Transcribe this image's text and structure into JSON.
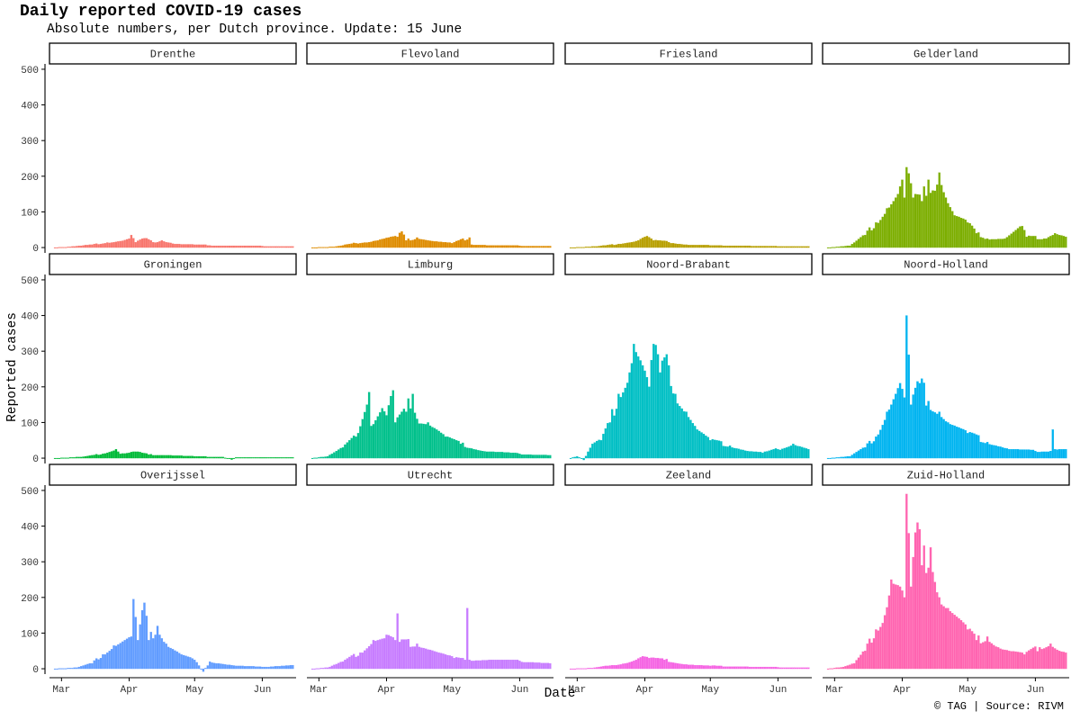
{
  "title": "Daily reported COVID-19 cases",
  "subtitle": "Absolute numbers, per Dutch province. Update: 15 June",
  "caption": "© TAG | Source: RIVM",
  "chart_data": {
    "type": "bar",
    "layout": "facet-grid",
    "facet_rows": 3,
    "facet_cols": 4,
    "xlabel": "Date",
    "ylabel": "Reported cases",
    "x_start": "2020-02-27",
    "x_end": "2020-06-15",
    "xticks": [
      {
        "label": "Mar",
        "date": "2020-03-01"
      },
      {
        "label": "Apr",
        "date": "2020-04-01"
      },
      {
        "label": "May",
        "date": "2020-05-01"
      },
      {
        "label": "Jun",
        "date": "2020-06-01"
      }
    ],
    "ylim": [
      -15,
      515
    ],
    "yticks": [
      0,
      100,
      200,
      300,
      400,
      500
    ],
    "grid": false,
    "legend": "none",
    "keyframes_note": "Daily values estimated from bar heights; sparse anchor dates, intermediate days interpolated.",
    "series": [
      {
        "name": "Drenthe",
        "color": "#F8766D",
        "keyframes": [
          [
            "2020-02-27",
            0
          ],
          [
            "2020-03-05",
            2
          ],
          [
            "2020-03-15",
            8
          ],
          [
            "2020-03-22",
            14
          ],
          [
            "2020-03-28",
            18
          ],
          [
            "2020-04-01",
            25
          ],
          [
            "2020-04-02",
            35
          ],
          [
            "2020-04-04",
            15
          ],
          [
            "2020-04-08",
            26
          ],
          [
            "2020-04-12",
            15
          ],
          [
            "2020-04-16",
            20
          ],
          [
            "2020-04-22",
            10
          ],
          [
            "2020-05-01",
            8
          ],
          [
            "2020-05-15",
            5
          ],
          [
            "2020-06-01",
            4
          ],
          [
            "2020-06-15",
            3
          ]
        ]
      },
      {
        "name": "Flevoland",
        "color": "#DE8C00",
        "keyframes": [
          [
            "2020-02-27",
            0
          ],
          [
            "2020-03-08",
            2
          ],
          [
            "2020-03-18",
            12
          ],
          [
            "2020-03-26",
            18
          ],
          [
            "2020-04-02",
            28
          ],
          [
            "2020-04-06",
            30
          ],
          [
            "2020-04-08",
            45
          ],
          [
            "2020-04-10",
            20
          ],
          [
            "2020-04-15",
            28
          ],
          [
            "2020-04-22",
            18
          ],
          [
            "2020-05-01",
            12
          ],
          [
            "2020-05-09",
            28
          ],
          [
            "2020-05-10",
            8
          ],
          [
            "2020-05-20",
            6
          ],
          [
            "2020-06-01",
            5
          ],
          [
            "2020-06-15",
            4
          ]
        ]
      },
      {
        "name": "Friesland",
        "color": "#B79F00",
        "keyframes": [
          [
            "2020-02-27",
            0
          ],
          [
            "2020-03-10",
            3
          ],
          [
            "2020-03-20",
            10
          ],
          [
            "2020-03-28",
            18
          ],
          [
            "2020-04-02",
            32
          ],
          [
            "2020-04-05",
            20
          ],
          [
            "2020-04-12",
            15
          ],
          [
            "2020-04-20",
            8
          ],
          [
            "2020-05-01",
            6
          ],
          [
            "2020-05-15",
            5
          ],
          [
            "2020-06-01",
            3
          ],
          [
            "2020-06-15",
            3
          ]
        ]
      },
      {
        "name": "Gelderland",
        "color": "#7CAE00",
        "keyframes": [
          [
            "2020-02-27",
            0
          ],
          [
            "2020-03-08",
            5
          ],
          [
            "2020-03-15",
            35
          ],
          [
            "2020-03-20",
            70
          ],
          [
            "2020-03-25",
            110
          ],
          [
            "2020-03-30",
            150
          ],
          [
            "2020-04-01",
            190
          ],
          [
            "2020-04-02",
            140
          ],
          [
            "2020-04-03",
            225
          ],
          [
            "2020-04-06",
            140
          ],
          [
            "2020-04-10",
            130
          ],
          [
            "2020-04-13",
            190
          ],
          [
            "2020-04-15",
            160
          ],
          [
            "2020-04-18",
            210
          ],
          [
            "2020-04-21",
            140
          ],
          [
            "2020-04-25",
            90
          ],
          [
            "2020-05-01",
            70
          ],
          [
            "2020-05-05",
            40
          ],
          [
            "2020-05-10",
            25
          ],
          [
            "2020-05-18",
            25
          ],
          [
            "2020-05-26",
            60
          ],
          [
            "2020-05-28",
            30
          ],
          [
            "2020-06-05",
            25
          ],
          [
            "2020-06-10",
            40
          ],
          [
            "2020-06-15",
            30
          ]
        ]
      },
      {
        "name": "Groningen",
        "color": "#00BA38",
        "keyframes": [
          [
            "2020-02-27",
            0
          ],
          [
            "2020-03-10",
            3
          ],
          [
            "2020-03-20",
            12
          ],
          [
            "2020-03-26",
            25
          ],
          [
            "2020-03-28",
            12
          ],
          [
            "2020-04-01",
            15
          ],
          [
            "2020-04-04",
            18
          ],
          [
            "2020-04-10",
            10
          ],
          [
            "2020-04-20",
            8
          ],
          [
            "2020-05-01",
            5
          ],
          [
            "2020-05-14",
            3
          ],
          [
            "2020-05-18",
            -4
          ],
          [
            "2020-05-20",
            2
          ],
          [
            "2020-06-01",
            2
          ],
          [
            "2020-06-15",
            2
          ]
        ]
      },
      {
        "name": "Limburg",
        "color": "#00C08B",
        "keyframes": [
          [
            "2020-02-27",
            0
          ],
          [
            "2020-03-05",
            5
          ],
          [
            "2020-03-12",
            30
          ],
          [
            "2020-03-18",
            60
          ],
          [
            "2020-03-24",
            185
          ],
          [
            "2020-03-25",
            90
          ],
          [
            "2020-03-30",
            140
          ],
          [
            "2020-04-01",
            120
          ],
          [
            "2020-04-04",
            190
          ],
          [
            "2020-04-05",
            100
          ],
          [
            "2020-04-10",
            130
          ],
          [
            "2020-04-13",
            180
          ],
          [
            "2020-04-15",
            110
          ],
          [
            "2020-04-20",
            100
          ],
          [
            "2020-04-28",
            60
          ],
          [
            "2020-05-05",
            40
          ],
          [
            "2020-05-15",
            20
          ],
          [
            "2020-06-01",
            12
          ],
          [
            "2020-06-15",
            8
          ]
        ]
      },
      {
        "name": "Noord-Brabant",
        "color": "#00BFC4",
        "keyframes": [
          [
            "2020-02-27",
            0
          ],
          [
            "2020-03-01",
            5
          ],
          [
            "2020-03-04",
            -5
          ],
          [
            "2020-03-08",
            40
          ],
          [
            "2020-03-12",
            50
          ],
          [
            "2020-03-16",
            100
          ],
          [
            "2020-03-20",
            180
          ],
          [
            "2020-03-25",
            240
          ],
          [
            "2020-03-27",
            320
          ],
          [
            "2020-03-31",
            260
          ],
          [
            "2020-04-03",
            200
          ],
          [
            "2020-04-05",
            320
          ],
          [
            "2020-04-08",
            240
          ],
          [
            "2020-04-12",
            260
          ],
          [
            "2020-04-15",
            180
          ],
          [
            "2020-04-20",
            130
          ],
          [
            "2020-04-25",
            80
          ],
          [
            "2020-05-01",
            50
          ],
          [
            "2020-05-10",
            35
          ],
          [
            "2020-05-18",
            20
          ],
          [
            "2020-05-25",
            15
          ],
          [
            "2020-06-01",
            25
          ],
          [
            "2020-06-08",
            40
          ],
          [
            "2020-06-15",
            25
          ]
        ]
      },
      {
        "name": "Noord-Holland",
        "color": "#00B4F0",
        "keyframes": [
          [
            "2020-02-27",
            0
          ],
          [
            "2020-03-08",
            5
          ],
          [
            "2020-03-15",
            30
          ],
          [
            "2020-03-20",
            60
          ],
          [
            "2020-03-25",
            130
          ],
          [
            "2020-03-31",
            210
          ],
          [
            "2020-04-02",
            170
          ],
          [
            "2020-04-03",
            400
          ],
          [
            "2020-04-05",
            150
          ],
          [
            "2020-04-09",
            210
          ],
          [
            "2020-04-13",
            160
          ],
          [
            "2020-04-18",
            130
          ],
          [
            "2020-04-22",
            100
          ],
          [
            "2020-05-01",
            70
          ],
          [
            "2020-05-10",
            45
          ],
          [
            "2020-05-20",
            25
          ],
          [
            "2020-06-01",
            20
          ],
          [
            "2020-06-08",
            20
          ],
          [
            "2020-06-09",
            80
          ],
          [
            "2020-06-10",
            25
          ],
          [
            "2020-06-15",
            25
          ]
        ]
      },
      {
        "name": "Overijssel",
        "color": "#619CFF",
        "keyframes": [
          [
            "2020-02-27",
            0
          ],
          [
            "2020-03-08",
            3
          ],
          [
            "2020-03-15",
            15
          ],
          [
            "2020-03-20",
            40
          ],
          [
            "2020-03-25",
            65
          ],
          [
            "2020-03-30",
            80
          ],
          [
            "2020-04-02",
            90
          ],
          [
            "2020-04-03",
            195
          ],
          [
            "2020-04-05",
            80
          ],
          [
            "2020-04-08",
            185
          ],
          [
            "2020-04-10",
            80
          ],
          [
            "2020-04-14",
            120
          ],
          [
            "2020-04-18",
            70
          ],
          [
            "2020-04-25",
            40
          ],
          [
            "2020-05-01",
            25
          ],
          [
            "2020-05-05",
            -8
          ],
          [
            "2020-05-08",
            20
          ],
          [
            "2020-05-20",
            8
          ],
          [
            "2020-06-01",
            5
          ],
          [
            "2020-06-15",
            10
          ]
        ]
      },
      {
        "name": "Utrecht",
        "color": "#C77CFF",
        "keyframes": [
          [
            "2020-02-27",
            0
          ],
          [
            "2020-03-05",
            3
          ],
          [
            "2020-03-12",
            20
          ],
          [
            "2020-03-20",
            45
          ],
          [
            "2020-03-26",
            80
          ],
          [
            "2020-03-31",
            85
          ],
          [
            "2020-04-01",
            95
          ],
          [
            "2020-04-05",
            80
          ],
          [
            "2020-04-06",
            155
          ],
          [
            "2020-04-07",
            75
          ],
          [
            "2020-04-15",
            70
          ],
          [
            "2020-04-25",
            45
          ],
          [
            "2020-05-02",
            30
          ],
          [
            "2020-05-07",
            25
          ],
          [
            "2020-05-08",
            170
          ],
          [
            "2020-05-09",
            25
          ],
          [
            "2020-05-20",
            25
          ],
          [
            "2020-06-01",
            22
          ],
          [
            "2020-06-15",
            15
          ]
        ]
      },
      {
        "name": "Zeeland",
        "color": "#F564E3",
        "keyframes": [
          [
            "2020-02-27",
            0
          ],
          [
            "2020-03-08",
            2
          ],
          [
            "2020-03-18",
            10
          ],
          [
            "2020-03-26",
            20
          ],
          [
            "2020-03-31",
            35
          ],
          [
            "2020-04-03",
            30
          ],
          [
            "2020-04-10",
            25
          ],
          [
            "2020-04-20",
            12
          ],
          [
            "2020-05-01",
            8
          ],
          [
            "2020-05-15",
            6
          ],
          [
            "2020-06-01",
            4
          ],
          [
            "2020-06-15",
            3
          ]
        ]
      },
      {
        "name": "Zuid-Holland",
        "color": "#FF64B0",
        "keyframes": [
          [
            "2020-02-27",
            0
          ],
          [
            "2020-03-05",
            5
          ],
          [
            "2020-03-10",
            15
          ],
          [
            "2020-03-15",
            50
          ],
          [
            "2020-03-20",
            110
          ],
          [
            "2020-03-24",
            150
          ],
          [
            "2020-03-27",
            250
          ],
          [
            "2020-03-31",
            230
          ],
          [
            "2020-04-02",
            200
          ],
          [
            "2020-04-03",
            490
          ],
          [
            "2020-04-05",
            230
          ],
          [
            "2020-04-08",
            410
          ],
          [
            "2020-04-10",
            290
          ],
          [
            "2020-04-14",
            340
          ],
          [
            "2020-04-18",
            200
          ],
          [
            "2020-04-22",
            170
          ],
          [
            "2020-05-01",
            110
          ],
          [
            "2020-05-05",
            80
          ],
          [
            "2020-05-10",
            90
          ],
          [
            "2020-05-15",
            60
          ],
          [
            "2020-05-20",
            50
          ],
          [
            "2020-05-27",
            40
          ],
          [
            "2020-06-03",
            60
          ],
          [
            "2020-06-08",
            70
          ],
          [
            "2020-06-12",
            50
          ],
          [
            "2020-06-15",
            45
          ]
        ]
      }
    ]
  }
}
